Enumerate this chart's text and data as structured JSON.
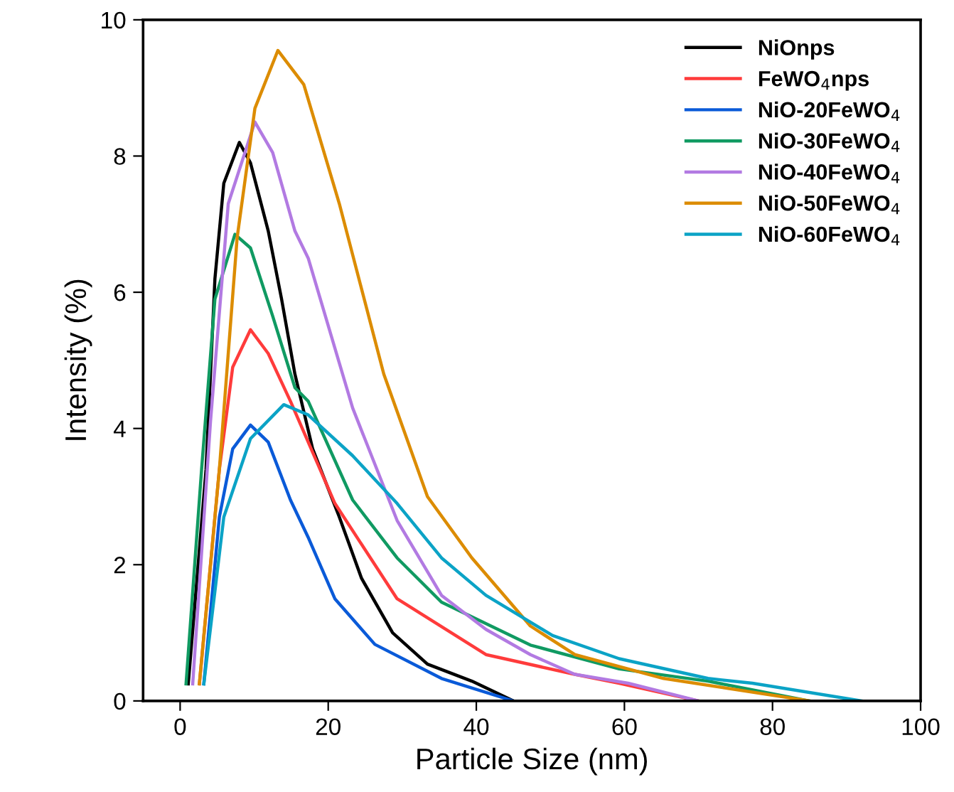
{
  "chart_data": {
    "type": "line",
    "xlabel": "Particle Size (nm)",
    "ylabel": "Intensity (%)",
    "xlim": [
      -5,
      100
    ],
    "xticks": [
      0,
      20,
      40,
      60,
      80,
      100
    ],
    "ylim": [
      0,
      10
    ],
    "yticks": [
      0,
      2,
      4,
      6,
      8,
      10
    ],
    "grid": false,
    "legend": "top right",
    "marker": "none",
    "line_style": "solid",
    "series": [
      {
        "name": "NiOnps",
        "color": "#000000",
        "x": [
          1.1,
          3.5,
          4.7,
          5.9,
          8.0,
          9.5,
          11.9,
          13.7,
          15.5,
          17.9,
          21.5,
          24.5,
          28.7,
          33.4,
          39.4,
          45
        ],
        "values": [
          0.25,
          3.4,
          6.2,
          7.6,
          8.2,
          7.9,
          6.9,
          5.9,
          4.8,
          3.7,
          2.7,
          1.8,
          1.0,
          0.54,
          0.29,
          0
        ]
      },
      {
        "name": "FeWO$_{4}$nps",
        "color": "#ff3b3b",
        "x": [
          2.6,
          5.3,
          7.1,
          9.5,
          11.9,
          14.9,
          17.3,
          20.9,
          29.3,
          41.3,
          53.3,
          59.3,
          70
        ],
        "values": [
          0.25,
          3.4,
          4.9,
          5.45,
          5.1,
          4.4,
          3.8,
          2.9,
          1.5,
          0.68,
          0.39,
          0.26,
          0
        ]
      },
      {
        "name": "NiO-20FeWO$_{4}$",
        "color": "#0a5ad8",
        "x": [
          3.2,
          5.3,
          7.1,
          9.5,
          11.9,
          14.9,
          17.3,
          20.9,
          26.3,
          35.3,
          45
        ],
        "values": [
          0.25,
          2.7,
          3.7,
          4.05,
          3.8,
          2.95,
          2.4,
          1.5,
          0.83,
          0.33,
          0
        ]
      },
      {
        "name": "NiO-30FeWO$_{4}$",
        "color": "#109a62",
        "x": [
          0.8,
          2.9,
          4.7,
          7.4,
          9.5,
          12.5,
          15.5,
          17.3,
          23.3,
          29.3,
          35.3,
          47.3,
          59.3,
          71.3,
          85
        ],
        "values": [
          0.25,
          3.4,
          5.9,
          6.85,
          6.65,
          5.65,
          4.6,
          4.4,
          2.95,
          2.1,
          1.45,
          0.82,
          0.47,
          0.29,
          0
        ]
      },
      {
        "name": "NiO-40FeWO$_{4}$",
        "color": "#b27ae2",
        "x": [
          1.7,
          4.1,
          6.5,
          10.1,
          12.5,
          15.5,
          17.3,
          23.3,
          29.3,
          35.3,
          41.3,
          47.3,
          53.3,
          60.5,
          70
        ],
        "values": [
          0.25,
          4.1,
          7.3,
          8.5,
          8.05,
          6.9,
          6.5,
          4.3,
          2.65,
          1.55,
          1.05,
          0.68,
          0.39,
          0.26,
          0
        ]
      },
      {
        "name": "NiO-50FeWO$_{4}$",
        "color": "#dc8c00",
        "x": [
          2.6,
          5.3,
          7.7,
          10.1,
          13.2,
          16.7,
          21.5,
          27.5,
          33.4,
          39.4,
          47.3,
          53.3,
          65.3,
          85
        ],
        "values": [
          0.25,
          3.4,
          6.8,
          8.7,
          9.55,
          9.05,
          7.3,
          4.8,
          3.0,
          2.1,
          1.1,
          0.68,
          0.33,
          0
        ]
      },
      {
        "name": "NiO-60FeWO$_{4}$",
        "color": "#0ba3c6",
        "x": [
          3.2,
          5.9,
          9.5,
          14.0,
          17.3,
          23.3,
          29.3,
          35.3,
          41.3,
          50.3,
          59.3,
          71.3,
          77.3,
          92
        ],
        "values": [
          0.25,
          2.7,
          3.85,
          4.35,
          4.2,
          3.6,
          2.9,
          2.1,
          1.55,
          0.96,
          0.62,
          0.33,
          0.26,
          0
        ]
      }
    ]
  }
}
